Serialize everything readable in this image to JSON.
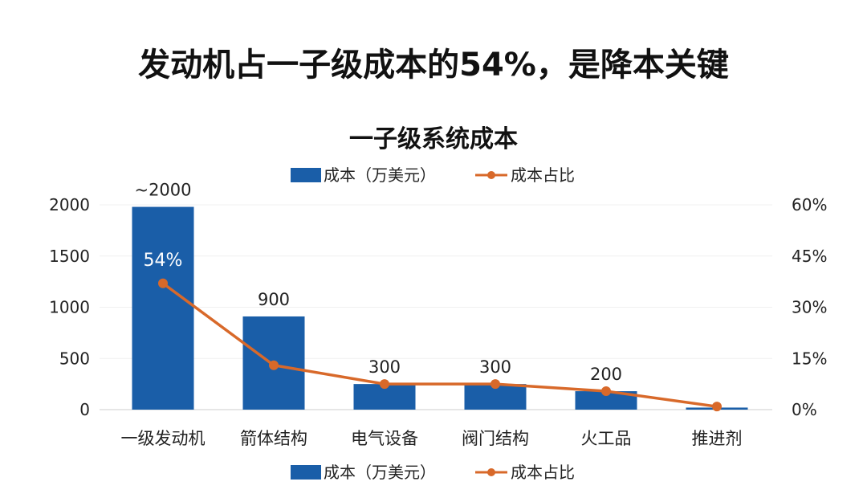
{
  "page_title": "发动机占一子级成本的54%，是降本关键",
  "chart_data": {
    "type": "bar+line",
    "title": "一子级系统成本",
    "categories": [
      "一级发动机",
      "箭体结构",
      "电气设备",
      "阀门结构",
      "火工品",
      "推进剂"
    ],
    "series": [
      {
        "name": "成本（万美元）",
        "type": "bar",
        "axis": "left",
        "values": [
          1980,
          910,
          250,
          250,
          180,
          20
        ],
        "data_labels": [
          "~2000",
          "900",
          "300",
          "300",
          "200",
          ""
        ],
        "color": "#1a5ea8"
      },
      {
        "name": "成本占比",
        "type": "line",
        "axis": "right",
        "values": [
          37,
          13,
          7.5,
          7.5,
          5.4,
          0.9
        ],
        "color": "#d8692a"
      }
    ],
    "annotation": "54%",
    "left_axis": {
      "ylim": [
        0,
        2000
      ],
      "ticks": [
        "0",
        "500",
        "1000",
        "1500",
        "2000"
      ]
    },
    "right_axis": {
      "ylim": [
        0,
        60
      ],
      "ticks": [
        "0%",
        "15%",
        "30%",
        "45%",
        "60%"
      ]
    },
    "legend": [
      "top",
      "bottom"
    ],
    "grid": true
  }
}
